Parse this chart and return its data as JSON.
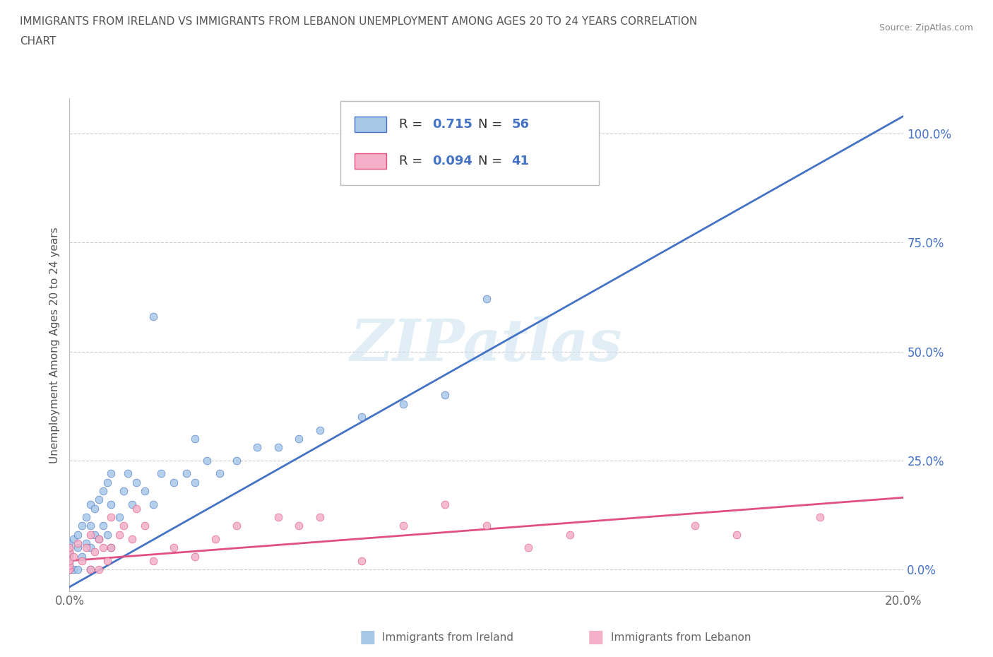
{
  "title_line1": "IMMIGRANTS FROM IRELAND VS IMMIGRANTS FROM LEBANON UNEMPLOYMENT AMONG AGES 20 TO 24 YEARS CORRELATION",
  "title_line2": "CHART",
  "source_text": "Source: ZipAtlas.com",
  "ylabel": "Unemployment Among Ages 20 to 24 years",
  "ireland_color": "#a8c8e8",
  "ireland_color_line": "#4472c4",
  "lebanon_color": "#f4b0c8",
  "lebanon_color_line": "#e05080",
  "R_ireland": 0.715,
  "N_ireland": 56,
  "R_lebanon": 0.094,
  "N_lebanon": 41,
  "watermark_text": "ZIPatlas",
  "xlim": [
    0.0,
    0.2
  ],
  "ylim": [
    -0.05,
    1.08
  ],
  "yticks": [
    0.0,
    0.25,
    0.5,
    0.75,
    1.0
  ],
  "ytick_labels": [
    "0.0%",
    "25.0%",
    "50.0%",
    "75.0%",
    "100.0%"
  ],
  "xticks": [
    0.0,
    0.05,
    0.1,
    0.15,
    0.2
  ],
  "xtick_labels": [
    "0.0%",
    "",
    "",
    "",
    "20.0%"
  ],
  "ireland_line_x": [
    0.0,
    0.2
  ],
  "ireland_line_y": [
    -0.04,
    1.04
  ],
  "lebanon_line_x": [
    0.0,
    0.2
  ],
  "lebanon_line_y": [
    0.02,
    0.165
  ],
  "ireland_scatter_x": [
    0.0,
    0.0,
    0.0,
    0.0,
    0.0,
    0.0,
    0.0,
    0.0,
    0.001,
    0.001,
    0.002,
    0.002,
    0.002,
    0.003,
    0.003,
    0.004,
    0.004,
    0.005,
    0.005,
    0.005,
    0.005,
    0.006,
    0.006,
    0.007,
    0.007,
    0.008,
    0.008,
    0.009,
    0.009,
    0.01,
    0.01,
    0.01,
    0.012,
    0.013,
    0.014,
    0.015,
    0.016,
    0.018,
    0.02,
    0.022,
    0.025,
    0.028,
    0.03,
    0.033,
    0.036,
    0.04,
    0.045,
    0.05,
    0.055,
    0.06,
    0.07,
    0.08,
    0.09,
    0.02,
    0.03,
    0.1
  ],
  "ireland_scatter_y": [
    0.0,
    0.0,
    0.01,
    0.02,
    0.03,
    0.04,
    0.05,
    0.06,
    0.0,
    0.07,
    0.0,
    0.05,
    0.08,
    0.03,
    0.1,
    0.06,
    0.12,
    0.0,
    0.05,
    0.1,
    0.15,
    0.08,
    0.14,
    0.07,
    0.16,
    0.1,
    0.18,
    0.08,
    0.2,
    0.05,
    0.15,
    0.22,
    0.12,
    0.18,
    0.22,
    0.15,
    0.2,
    0.18,
    0.15,
    0.22,
    0.2,
    0.22,
    0.2,
    0.25,
    0.22,
    0.25,
    0.28,
    0.28,
    0.3,
    0.32,
    0.35,
    0.38,
    0.4,
    0.58,
    0.3,
    0.62
  ],
  "lebanon_scatter_x": [
    0.0,
    0.0,
    0.0,
    0.0,
    0.0,
    0.0,
    0.001,
    0.002,
    0.003,
    0.004,
    0.005,
    0.005,
    0.006,
    0.007,
    0.007,
    0.008,
    0.009,
    0.01,
    0.01,
    0.012,
    0.013,
    0.015,
    0.016,
    0.018,
    0.02,
    0.025,
    0.03,
    0.035,
    0.04,
    0.05,
    0.055,
    0.06,
    0.07,
    0.08,
    0.09,
    0.1,
    0.11,
    0.12,
    0.15,
    0.16,
    0.18
  ],
  "lebanon_scatter_y": [
    0.0,
    0.0,
    0.01,
    0.02,
    0.04,
    0.05,
    0.03,
    0.06,
    0.02,
    0.05,
    0.0,
    0.08,
    0.04,
    0.0,
    0.07,
    0.05,
    0.02,
    0.05,
    0.12,
    0.08,
    0.1,
    0.07,
    0.14,
    0.1,
    0.02,
    0.05,
    0.03,
    0.07,
    0.1,
    0.12,
    0.1,
    0.12,
    0.02,
    0.1,
    0.15,
    0.1,
    0.05,
    0.08,
    0.1,
    0.08,
    0.12
  ],
  "legend_ireland_label": "Immigrants from Ireland",
  "legend_lebanon_label": "Immigrants from Lebanon"
}
